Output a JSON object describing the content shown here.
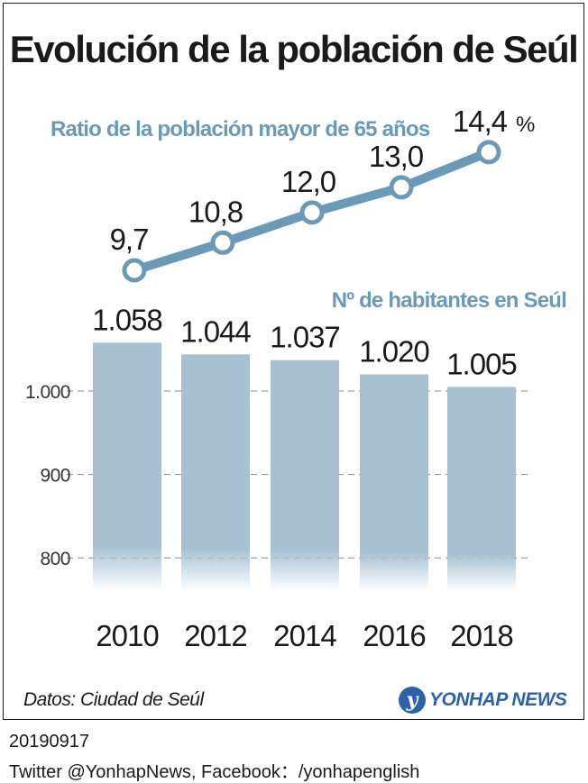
{
  "title": "Evolución de la población de Seúl",
  "source": "Datos: Ciudad de Seúl",
  "logo_text": "YONHAP NEWS",
  "logo_icon": "yonhap-y-logo",
  "footer": {
    "date": "20190917",
    "social": "Twitter @YonhapNews, Facebook：/yonhapenglish"
  },
  "colors": {
    "bar": "#a7c1d2",
    "line": "#6a9ab5",
    "label_blue": "#6a9ab5",
    "brand": "#2d62a8"
  },
  "chart_data": [
    {
      "type": "line",
      "title": "Ratio de la población mayor de 65 años",
      "categories": [
        "2010",
        "2012",
        "2014",
        "2016",
        "2018"
      ],
      "values": [
        9.7,
        10.8,
        12.0,
        13.0,
        14.4
      ],
      "value_labels": [
        "9,7",
        "10,8",
        "12,0",
        "13,0",
        "14,4"
      ],
      "unit": "%"
    },
    {
      "type": "bar",
      "title": "Nº de habitantes en Seúl",
      "categories": [
        "2010",
        "2012",
        "2014",
        "2016",
        "2018"
      ],
      "values": [
        1058,
        1044,
        1037,
        1020,
        1005
      ],
      "value_labels": [
        "1.058",
        "1.044",
        "1.037",
        "1.020",
        "1.005"
      ],
      "yticks": [
        "800",
        "900",
        "1.000"
      ],
      "ytick_values": [
        800,
        900,
        1000
      ],
      "grid": true
    }
  ]
}
